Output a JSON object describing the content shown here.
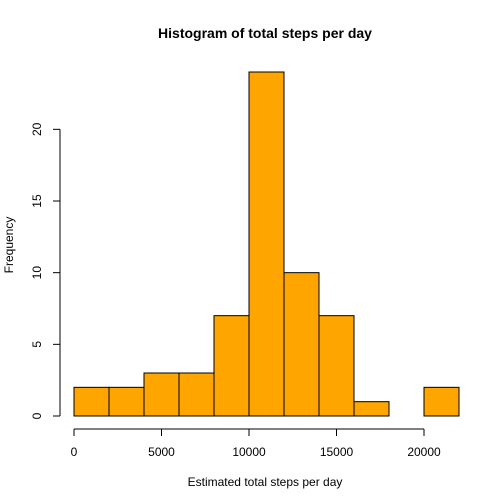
{
  "chart_data": {
    "type": "bar",
    "title": "Histogram of total steps per day",
    "xlabel": "Estimated total steps per day",
    "ylabel": "Frequency",
    "bins": [
      {
        "start": 0,
        "end": 2000,
        "count": 2
      },
      {
        "start": 2000,
        "end": 4000,
        "count": 2
      },
      {
        "start": 4000,
        "end": 6000,
        "count": 3
      },
      {
        "start": 6000,
        "end": 8000,
        "count": 3
      },
      {
        "start": 8000,
        "end": 10000,
        "count": 7
      },
      {
        "start": 10000,
        "end": 12000,
        "count": 24
      },
      {
        "start": 12000,
        "end": 14000,
        "count": 10
      },
      {
        "start": 14000,
        "end": 16000,
        "count": 7
      },
      {
        "start": 16000,
        "end": 18000,
        "count": 1
      },
      {
        "start": 18000,
        "end": 20000,
        "count": 0
      },
      {
        "start": 20000,
        "end": 22000,
        "count": 2
      }
    ],
    "xticks": [
      0,
      5000,
      10000,
      15000,
      20000
    ],
    "yticks": [
      0,
      5,
      10,
      15,
      20
    ],
    "xlim": [
      0,
      22000
    ],
    "ylim": [
      0,
      24
    ],
    "bar_color": "#FFA500",
    "border_color": "#000000",
    "grid": false,
    "legend": "none"
  }
}
